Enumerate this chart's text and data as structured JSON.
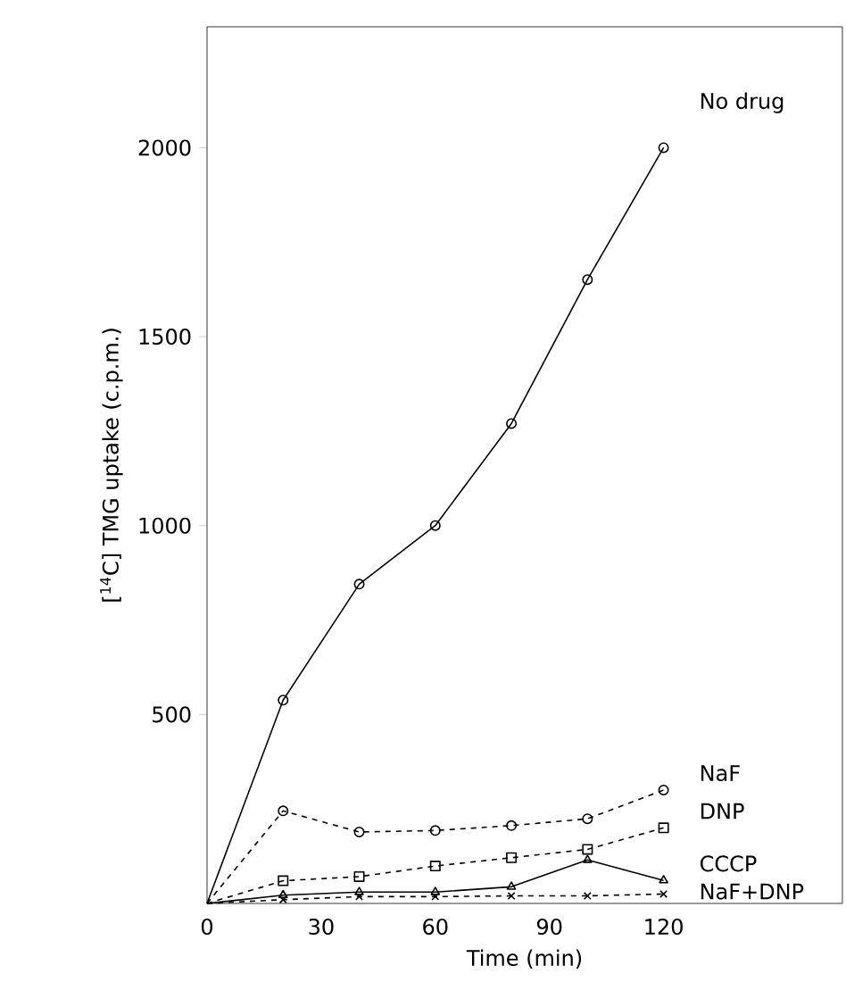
{
  "chart_data": {
    "type": "line",
    "xlabel": "Time (min)",
    "ylabel": "[$^{14}$C] TMG uptake (c.p.m.)",
    "xlim": [
      0,
      167
    ],
    "ylim": [
      0,
      2320
    ],
    "xticks": [
      0,
      30,
      60,
      90,
      120
    ],
    "yticks": [
      500,
      1000,
      1500,
      2000
    ],
    "grid": false,
    "legend": false,
    "series": [
      {
        "name": "No drug",
        "color": "#000000",
        "marker": "circle",
        "line_style": "solid",
        "x": [
          0,
          20,
          40,
          60,
          80,
          100,
          120
        ],
        "values": [
          0,
          538,
          845,
          1000,
          1270,
          1651,
          2000
        ]
      },
      {
        "name": "NaF",
        "color": "#000000",
        "marker": "circle",
        "line_style": "dashed",
        "x": [
          0,
          20,
          40,
          60,
          80,
          100,
          120
        ],
        "values": [
          0,
          245,
          189,
          193,
          206,
          224,
          300
        ]
      },
      {
        "name": "DNP",
        "color": "#000000",
        "marker": "square",
        "line_style": "dashed",
        "x": [
          0,
          20,
          40,
          60,
          80,
          100,
          120
        ],
        "values": [
          0,
          60,
          71,
          99,
          121,
          143,
          200
        ]
      },
      {
        "name": "CCCP",
        "color": "#000000",
        "marker": "triangle",
        "line_style": "solid",
        "x": [
          0,
          20,
          40,
          60,
          80,
          100,
          120
        ],
        "values": [
          0,
          22,
          30,
          30,
          44,
          115,
          61
        ]
      },
      {
        "name": "NaF+DNP",
        "color": "#000000",
        "marker": "cross",
        "line_style": "dashed",
        "x": [
          0,
          20,
          40,
          60,
          80,
          100,
          120
        ],
        "values": [
          0,
          10,
          18,
          18,
          20,
          20,
          25
        ]
      }
    ]
  }
}
